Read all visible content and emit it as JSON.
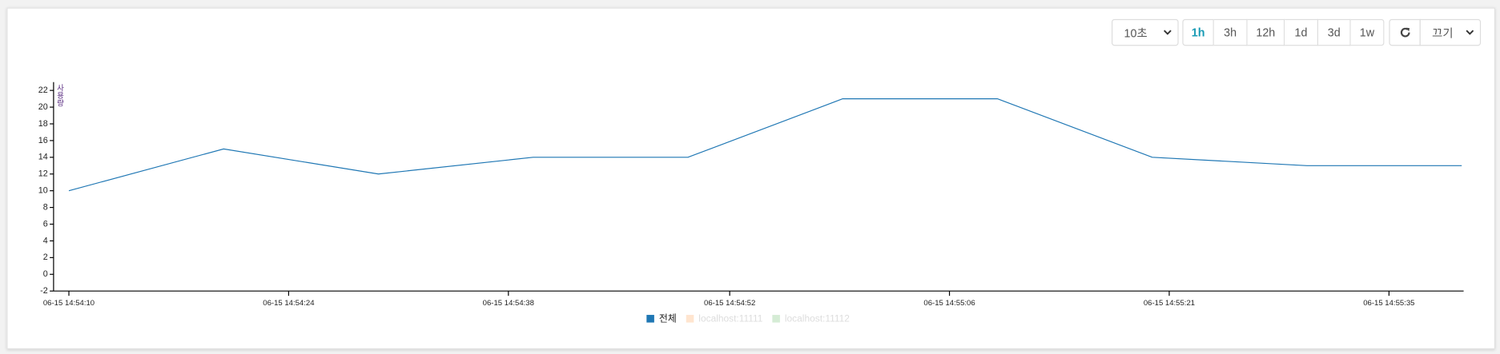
{
  "toolbar": {
    "interval": "10초",
    "ranges": [
      "1h",
      "3h",
      "12h",
      "1d",
      "3d",
      "1w"
    ],
    "active_range": "1h",
    "auto_refresh": "끄기"
  },
  "chart_data": {
    "type": "line",
    "y_label": "사용량",
    "x": [
      "06-15 14:54:10",
      "06-15 14:54:20",
      "06-15 14:54:30",
      "06-15 14:54:40",
      "06-15 14:54:50",
      "06-15 14:55:00",
      "06-15 14:55:10",
      "06-15 14:55:20",
      "06-15 14:55:30",
      "06-15 14:55:40"
    ],
    "series": [
      {
        "name": "전체",
        "color": "#1f77b4",
        "visible": true,
        "values": [
          10,
          15,
          12,
          14,
          14,
          21,
          21,
          14,
          13,
          13
        ]
      },
      {
        "name": "localhost:11111",
        "color": "#ff7f0e",
        "visible": false,
        "values": [
          null,
          null,
          null,
          null,
          null,
          null,
          null,
          null,
          null,
          null
        ]
      },
      {
        "name": "localhost:11112",
        "color": "#2ca02c",
        "visible": false,
        "values": [
          null,
          null,
          null,
          null,
          null,
          null,
          null,
          null,
          null,
          null
        ]
      }
    ],
    "xlim": [
      "06-15 14:54:10",
      "06-15 14:55:40"
    ],
    "xticks": [
      {
        "value": "06-15 14:54:10",
        "label": "06-15 14:54:10"
      },
      {
        "value": "06-15 14:54:24.2",
        "label": "06-15 14:54:24"
      },
      {
        "value": "06-15 14:54:38.4",
        "label": "06-15 14:54:38"
      },
      {
        "value": "06-15 14:54:52.7",
        "label": "06-15 14:54:52"
      },
      {
        "value": "06-15 14:55:06.9",
        "label": "06-15 14:55:06"
      },
      {
        "value": "06-15 14:55:21.1",
        "label": "06-15 14:55:21"
      },
      {
        "value": "06-15 14:55:35.3",
        "label": "06-15 14:55:35"
      }
    ],
    "ylim": [
      -2,
      23
    ],
    "yticks": [
      -2,
      0,
      2,
      4,
      6,
      8,
      10,
      12,
      14,
      16,
      18,
      20,
      22
    ]
  }
}
